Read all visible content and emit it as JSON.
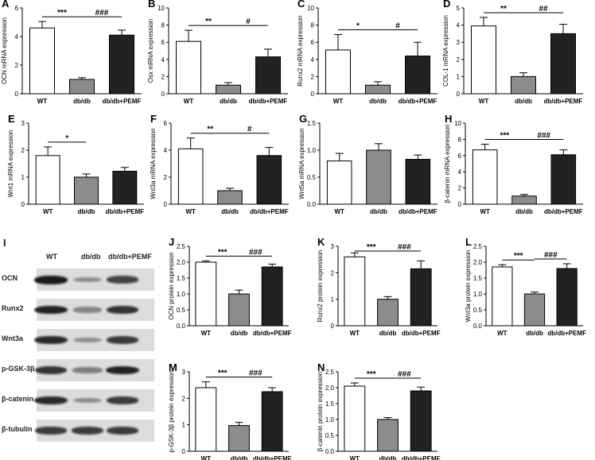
{
  "chart_data": [
    {
      "id": "A",
      "type": "bar",
      "categories": [
        "WT",
        "db/db",
        "db/db+PEMF"
      ],
      "values": [
        4.6,
        1.0,
        4.1
      ],
      "errors": [
        0.45,
        0.12,
        0.35
      ],
      "ylabel": "OCN mRNA expression",
      "ylim": [
        0,
        6
      ],
      "yticks": [
        0,
        2,
        4,
        6
      ],
      "colors": [
        "#ffffff",
        "#8c8c8c",
        "#222222"
      ],
      "sig": [
        {
          "from": 0,
          "to": 1,
          "label": "***"
        },
        {
          "from": 1,
          "to": 2,
          "label": "###"
        }
      ]
    },
    {
      "id": "B",
      "type": "bar",
      "categories": [
        "WT",
        "db/db",
        "db/db+PEMF"
      ],
      "values": [
        6.1,
        1.0,
        4.3
      ],
      "errors": [
        1.3,
        0.3,
        0.9
      ],
      "ylabel": "Osx mRNA expression",
      "ylim": [
        0,
        10
      ],
      "yticks": [
        0,
        2,
        4,
        6,
        8,
        10
      ],
      "colors": [
        "#ffffff",
        "#8c8c8c",
        "#222222"
      ],
      "sig": [
        {
          "from": 0,
          "to": 1,
          "label": "**"
        },
        {
          "from": 1,
          "to": 2,
          "label": "#"
        }
      ]
    },
    {
      "id": "C",
      "type": "bar",
      "categories": [
        "WT",
        "db/db",
        "db/db+PEMF"
      ],
      "values": [
        5.1,
        1.0,
        4.4
      ],
      "errors": [
        1.8,
        0.4,
        1.6
      ],
      "ylabel": "Runx2 mRNA expression",
      "ylim": [
        0,
        10
      ],
      "yticks": [
        0,
        2,
        4,
        6,
        8,
        10
      ],
      "colors": [
        "#ffffff",
        "#8c8c8c",
        "#222222"
      ],
      "sig": [
        {
          "from": 0,
          "to": 1,
          "label": "*"
        },
        {
          "from": 1,
          "to": 2,
          "label": "#"
        }
      ]
    },
    {
      "id": "D",
      "type": "bar",
      "categories": [
        "WT",
        "db/db",
        "db/db+PEMF"
      ],
      "values": [
        3.95,
        1.0,
        3.5
      ],
      "errors": [
        0.5,
        0.22,
        0.55
      ],
      "ylabel": "COL-1 mRNA expression",
      "ylim": [
        0,
        5
      ],
      "yticks": [
        0,
        1,
        2,
        3,
        4,
        5
      ],
      "colors": [
        "#ffffff",
        "#8c8c8c",
        "#222222"
      ],
      "sig": [
        {
          "from": 0,
          "to": 1,
          "label": "**"
        },
        {
          "from": 1,
          "to": 2,
          "label": "##"
        }
      ]
    },
    {
      "id": "E",
      "type": "bar",
      "categories": [
        "WT",
        "db/db",
        "db/db+PEMF"
      ],
      "values": [
        1.8,
        1.0,
        1.22
      ],
      "errors": [
        0.32,
        0.12,
        0.14
      ],
      "ylabel": "Wnt1 mRNA expression",
      "ylim": [
        0,
        3
      ],
      "yticks": [
        0,
        1,
        2,
        3
      ],
      "colors": [
        "#ffffff",
        "#8c8c8c",
        "#222222"
      ],
      "sig": [
        {
          "from": 0,
          "to": 1,
          "label": "*"
        }
      ]
    },
    {
      "id": "F",
      "type": "bar",
      "categories": [
        "WT",
        "db/db",
        "db/db+PEMF"
      ],
      "values": [
        4.1,
        1.0,
        3.6
      ],
      "errors": [
        0.8,
        0.18,
        0.6
      ],
      "ylabel": "Wnt3a mRNA expression",
      "ylim": [
        0,
        6
      ],
      "yticks": [
        0,
        2,
        4,
        6
      ],
      "colors": [
        "#ffffff",
        "#8c8c8c",
        "#222222"
      ],
      "sig": [
        {
          "from": 0,
          "to": 1,
          "label": "**"
        },
        {
          "from": 1,
          "to": 2,
          "label": "#"
        }
      ]
    },
    {
      "id": "G",
      "type": "bar",
      "categories": [
        "WT",
        "db/db",
        "db/db+PEMF"
      ],
      "values": [
        0.8,
        1.0,
        0.83
      ],
      "errors": [
        0.14,
        0.12,
        0.08
      ],
      "ylabel": "Wnt5a mRNA expression",
      "ylim": [
        0,
        1.5
      ],
      "yticks": [
        0.0,
        0.5,
        1.0,
        1.5
      ],
      "colors": [
        "#ffffff",
        "#8c8c8c",
        "#222222"
      ],
      "sig": []
    },
    {
      "id": "H",
      "type": "bar",
      "categories": [
        "WT",
        "db/db",
        "db/db+PEMF"
      ],
      "values": [
        6.7,
        1.0,
        6.1
      ],
      "errors": [
        0.7,
        0.2,
        0.6
      ],
      "ylabel": "β-catenin mRNA expression",
      "ylim": [
        0,
        10
      ],
      "yticks": [
        0,
        2,
        4,
        6,
        8,
        10
      ],
      "colors": [
        "#ffffff",
        "#8c8c8c",
        "#222222"
      ],
      "sig": [
        {
          "from": 0,
          "to": 1,
          "label": "***"
        },
        {
          "from": 1,
          "to": 2,
          "label": "###"
        }
      ]
    },
    {
      "id": "J",
      "type": "bar",
      "categories": [
        "WT",
        "db/db",
        "db/db+PEMF"
      ],
      "values": [
        2.0,
        1.0,
        1.85
      ],
      "errors": [
        0.04,
        0.12,
        0.09
      ],
      "ylabel": "OCN protein expression",
      "ylim": [
        0,
        2.5
      ],
      "yticks": [
        0.0,
        0.5,
        1.0,
        1.5,
        2.0,
        2.5
      ],
      "colors": [
        "#ffffff",
        "#8c8c8c",
        "#222222"
      ],
      "sig": [
        {
          "from": 0,
          "to": 1,
          "label": "***"
        },
        {
          "from": 1,
          "to": 2,
          "label": "###"
        }
      ]
    },
    {
      "id": "K",
      "type": "bar",
      "categories": [
        "WT",
        "db/db",
        "db/db+PEMF"
      ],
      "values": [
        2.6,
        1.0,
        2.15
      ],
      "errors": [
        0.15,
        0.1,
        0.3
      ],
      "ylabel": "Runx2 protein expression",
      "ylim": [
        0,
        3
      ],
      "yticks": [
        0,
        1,
        2,
        3
      ],
      "colors": [
        "#ffffff",
        "#8c8c8c",
        "#222222"
      ],
      "sig": [
        {
          "from": 0,
          "to": 1,
          "label": "***"
        },
        {
          "from": 1,
          "to": 2,
          "label": "###"
        }
      ]
    },
    {
      "id": "L",
      "type": "bar",
      "categories": [
        "WT",
        "db/db",
        "db/db+PEMF"
      ],
      "values": [
        1.85,
        1.0,
        1.8
      ],
      "errors": [
        0.07,
        0.06,
        0.15
      ],
      "ylabel": "Wnt3a protein expression",
      "ylim": [
        0,
        2.5
      ],
      "yticks": [
        0.0,
        0.5,
        1.0,
        1.5,
        2.0,
        2.5
      ],
      "colors": [
        "#ffffff",
        "#8c8c8c",
        "#222222"
      ],
      "sig": [
        {
          "from": 0,
          "to": 1,
          "label": "***"
        },
        {
          "from": 1,
          "to": 2,
          "label": "###"
        }
      ]
    },
    {
      "id": "M",
      "type": "bar",
      "categories": [
        "WT",
        "db/db",
        "db/db+PEMF"
      ],
      "values": [
        2.4,
        0.97,
        2.25
      ],
      "errors": [
        0.22,
        0.12,
        0.15
      ],
      "ylabel": "p-GSK-3β protein expression",
      "ylim": [
        0,
        3
      ],
      "yticks": [
        0,
        1,
        2,
        3
      ],
      "colors": [
        "#ffffff",
        "#8c8c8c",
        "#222222"
      ],
      "sig": [
        {
          "from": 0,
          "to": 1,
          "label": "***"
        },
        {
          "from": 1,
          "to": 2,
          "label": "###"
        }
      ]
    },
    {
      "id": "N",
      "type": "bar",
      "categories": [
        "WT",
        "db/db",
        "db/db+PEMF"
      ],
      "values": [
        2.05,
        1.0,
        1.9
      ],
      "errors": [
        0.1,
        0.06,
        0.12
      ],
      "ylabel": "β-catenin protein expression",
      "ylim": [
        0,
        2.5
      ],
      "yticks": [
        0.0,
        0.5,
        1.0,
        1.5,
        2.0,
        2.5
      ],
      "colors": [
        "#ffffff",
        "#8c8c8c",
        "#222222"
      ],
      "sig": [
        {
          "from": 0,
          "to": 1,
          "label": "***"
        },
        {
          "from": 1,
          "to": 2,
          "label": "###"
        }
      ]
    }
  ],
  "western_blot": {
    "letter": "I",
    "lanes": [
      "WT",
      "db/db",
      "db/db+PEMF"
    ],
    "rows": [
      {
        "label": "OCN",
        "intensity": [
          1.0,
          0.3,
          0.75
        ]
      },
      {
        "label": "Runx2",
        "intensity": [
          0.95,
          0.35,
          0.85
        ]
      },
      {
        "label": "Wnt3a",
        "intensity": [
          0.9,
          0.3,
          0.8
        ]
      },
      {
        "label": "p-GSK-3β",
        "intensity": [
          0.85,
          0.4,
          0.95
        ]
      },
      {
        "label": "β-catenin",
        "intensity": [
          0.9,
          0.3,
          0.8
        ]
      },
      {
        "label": "β-tubulin",
        "intensity": [
          0.8,
          0.8,
          0.8
        ]
      }
    ]
  }
}
